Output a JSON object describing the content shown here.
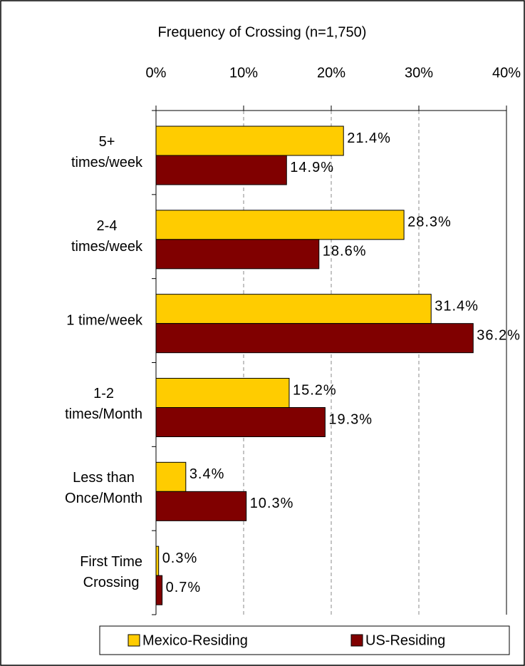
{
  "chart_data": {
    "type": "bar",
    "orientation": "horizontal",
    "title": "Frequency of Crossing (n=1,750)",
    "categories": [
      "5+\ntimes/week",
      "2-4\ntimes/week",
      "1 time/week",
      "1-2\ntimes/Month",
      "Less than\nOnce/Month",
      "First Time\nCrossing"
    ],
    "series": [
      {
        "name": "Mexico-Residing",
        "color": "#ffcc00",
        "values": [
          21.4,
          28.3,
          31.4,
          15.2,
          3.4,
          0.3
        ],
        "value_labels": [
          "21.4%",
          "28.3%",
          "31.4%",
          "15.2%",
          "3.4%",
          "0.3%"
        ]
      },
      {
        "name": "US-Residing",
        "color": "#800000",
        "values": [
          14.9,
          18.6,
          36.2,
          19.3,
          10.3,
          0.7
        ],
        "value_labels": [
          "14.9%",
          "18.6%",
          "36.2%",
          "19.3%",
          "10.3%",
          "0.7%"
        ]
      }
    ],
    "xlim": [
      0,
      40
    ],
    "xticks": [
      {
        "value": 0,
        "label": "0%"
      },
      {
        "value": 10,
        "label": "10%"
      },
      {
        "value": 20,
        "label": "20%"
      },
      {
        "value": 30,
        "label": "30%"
      },
      {
        "value": 40,
        "label": "40%"
      }
    ],
    "grid": true,
    "legend": "bottom"
  }
}
